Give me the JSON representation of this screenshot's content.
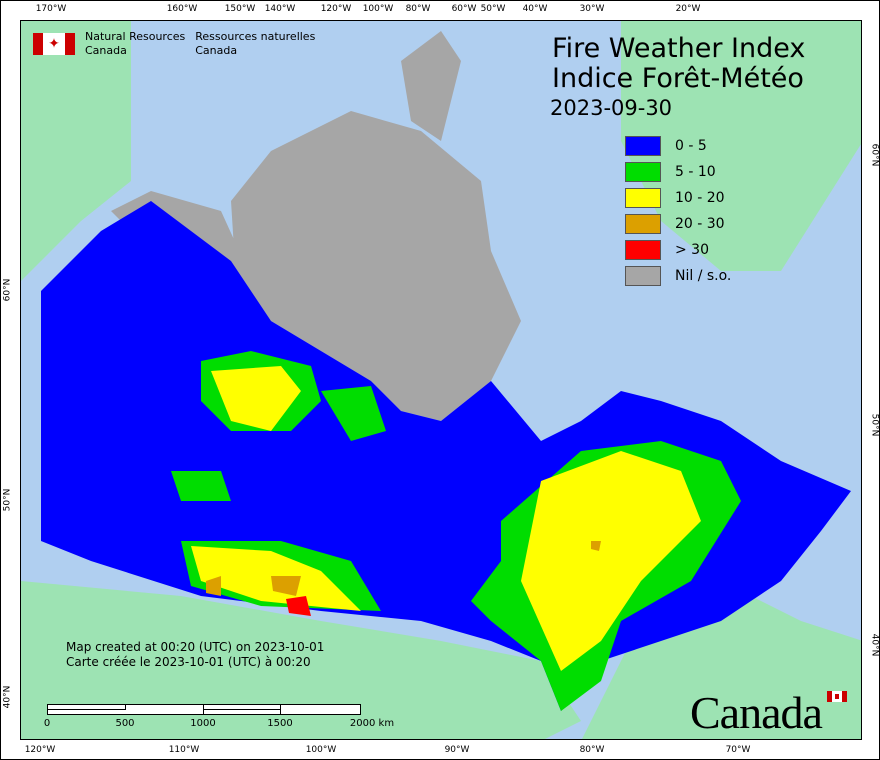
{
  "header": {
    "org_en_line1": "Natural Resources",
    "org_en_line2": "Canada",
    "org_fr_line1": "Ressources naturelles",
    "org_fr_line2": "Canada"
  },
  "title": {
    "en": "Fire Weather Index",
    "fr": "Indice Forêt-Météo",
    "date": "2023-09-30"
  },
  "legend": [
    {
      "label": "0 - 5",
      "color": "#0000ff"
    },
    {
      "label": "5 - 10",
      "color": "#00dd00"
    },
    {
      "label": "10 - 20",
      "color": "#ffff00"
    },
    {
      "label": "20 - 30",
      "color": "#dca000"
    },
    {
      "label": "> 30",
      "color": "#ff0000"
    },
    {
      "label": "Nil / s.o.",
      "color": "#a6a6a6"
    }
  ],
  "footer": {
    "created_en": "Map created at 00:20 (UTC) on 2023-10-01",
    "created_fr": "Carte créée le 2023-10-01 (UTC) à 00:20",
    "wordmark": "Canada"
  },
  "scale_bar": {
    "labels": [
      "0",
      "500",
      "1000",
      "1500",
      "2000  km"
    ]
  },
  "axes": {
    "top": [
      "170°W",
      "160°W",
      "150°W",
      "140°W",
      "120°W",
      "100°W",
      "80°W",
      "60°W",
      "50°W",
      "40°W",
      "30°W",
      "20°W"
    ],
    "bottom": [
      "120°W",
      "110°W",
      "100°W",
      "90°W",
      "80°W",
      "70°W"
    ],
    "left": [
      "60°N",
      "50°N",
      "40°N"
    ],
    "right": [
      "60°N",
      "50°N",
      "40°N"
    ]
  },
  "colors": {
    "ocean": "#b0cff0",
    "other_land": "#9de3b3",
    "nil": "#a6a6a6"
  }
}
